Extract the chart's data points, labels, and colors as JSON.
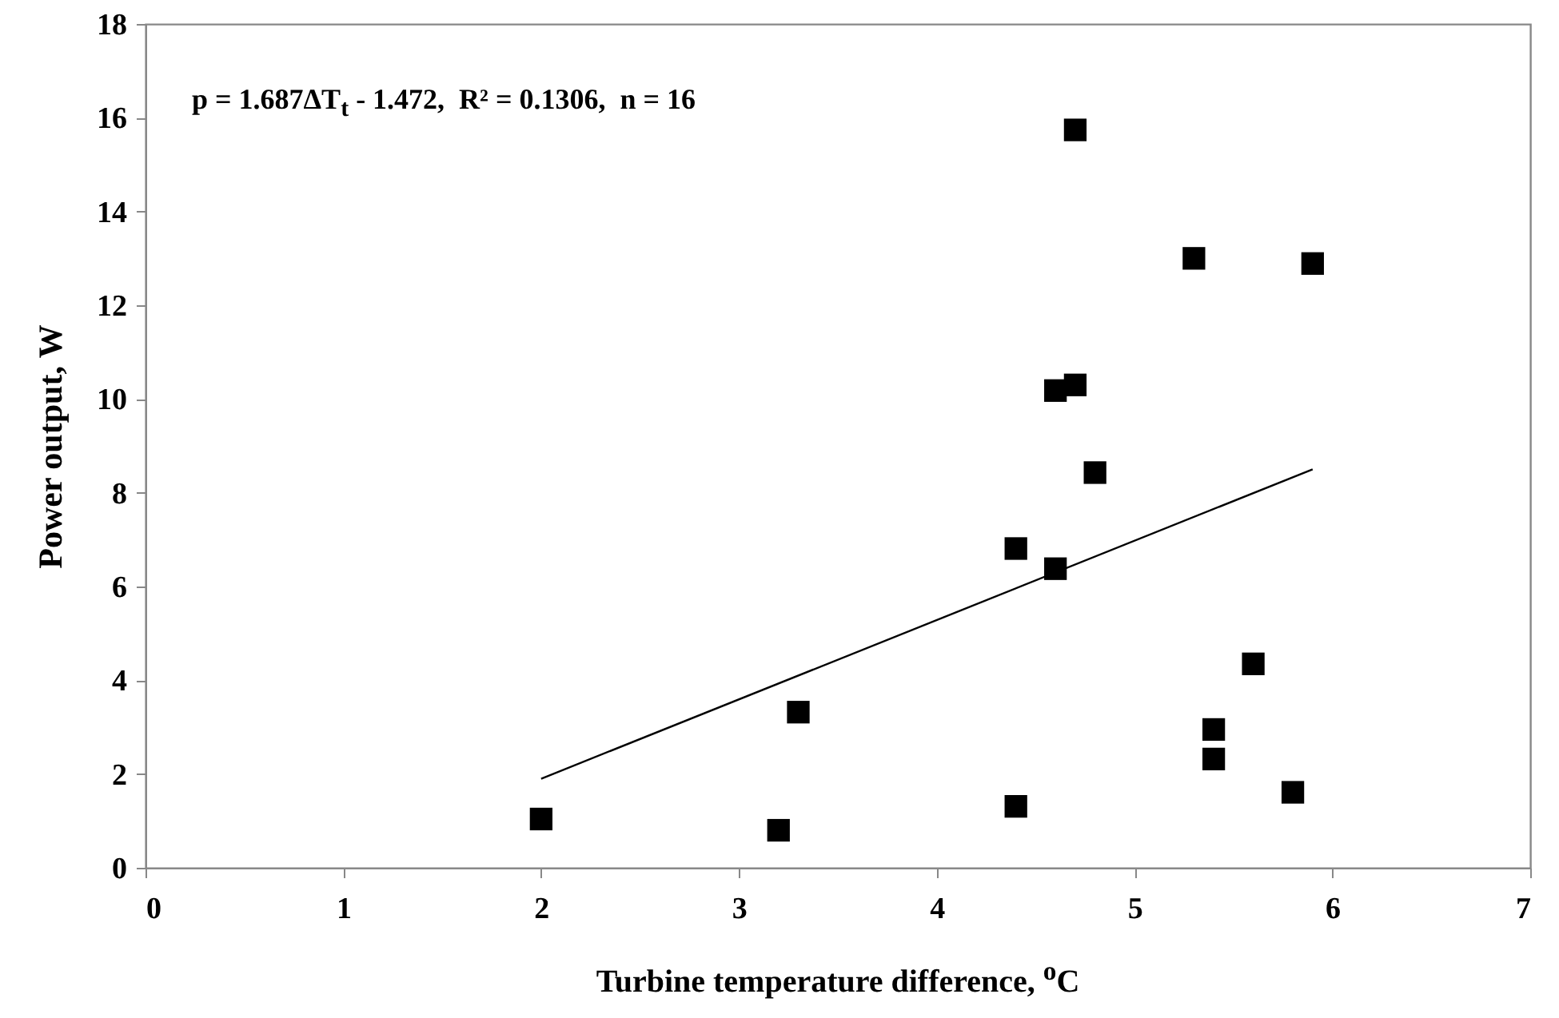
{
  "chart_data": {
    "type": "scatter",
    "xlabel": "Turbine temperature difference, $^{o}$C",
    "ylabel": "Power output, W",
    "annotations": [
      "p = 1.687ΔT$_{t}$ - 1.472,  R² = 0.1306,  n = 16"
    ],
    "xlim": [
      0,
      7
    ],
    "xticks": [
      0,
      1,
      2,
      3,
      4,
      5,
      6,
      7
    ],
    "ylim": [
      0,
      18
    ],
    "yticks": [
      0,
      2,
      4,
      6,
      8,
      10,
      12,
      14,
      16,
      18
    ],
    "grid": false,
    "series": [
      {
        "marker": "square",
        "color": "#000000",
        "x": [
          2.0,
          3.2,
          3.3,
          4.4,
          4.4,
          4.6,
          4.6,
          4.7,
          4.7,
          4.8,
          5.3,
          5.4,
          5.4,
          5.6,
          5.8,
          5.9
        ],
        "values": [
          1.04,
          0.8,
          3.32,
          1.31,
          6.81,
          6.38,
          10.18,
          10.3,
          15.74,
          8.43,
          13.0,
          2.95,
          2.32,
          4.35,
          1.61,
          12.89
        ]
      },
      {
        "type": "line",
        "color": "#000000",
        "x": [
          2.0,
          5.9
        ],
        "values": [
          1.9,
          8.5
        ]
      }
    ]
  }
}
